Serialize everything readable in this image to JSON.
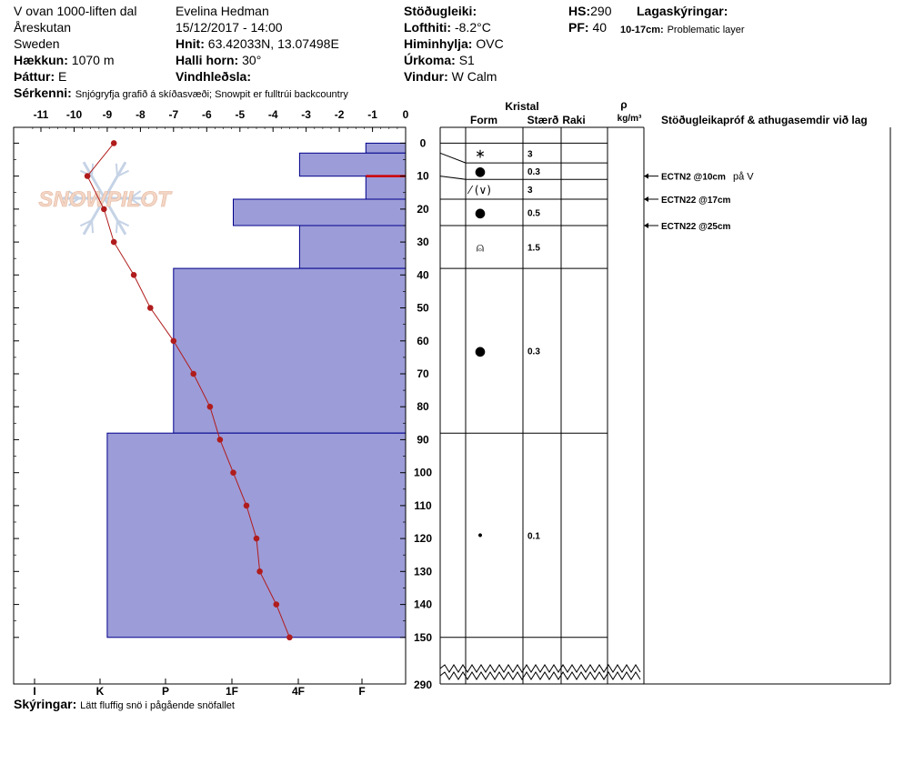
{
  "header": {
    "location_line1": "V ovan 1000-liften dal",
    "location_line2": "Åreskutan",
    "location_line3": "Sweden",
    "elevation_label": "Hækkun:",
    "elevation": "1070 m",
    "aspect_label": "Þáttur:",
    "aspect": "E",
    "observer": "Evelina Hedman",
    "datetime": "15/12/2017 - 14:00",
    "coords_label": "Hnit:",
    "coords": "63.42033N, 13.07498E",
    "slope_label": "Halli horn:",
    "slope": "30°",
    "wind_loading_label": "Vindhleðsla:",
    "stability_label": "Stöðugleiki:",
    "air_temp_label": "Lofthiti:",
    "air_temp": "-8.2°C",
    "sky_label": "Himinhylja:",
    "sky": "OVC",
    "precip_label": "Úrkoma:",
    "precip": "S1",
    "wind_label": "Vindur:",
    "wind": "W Calm",
    "hs_label": "HS:",
    "hs": "290",
    "pf_label": "PF:",
    "pf": "40",
    "layer_notes_label": "Lagaskýringar:",
    "problem_layer_range": "10-17cm:",
    "problem_layer_text": "Problematic layer",
    "specifics_label": "Sérkenni:",
    "specifics": "Snjógryfja grafið á skíðasvæði; Snowpit er fulltrúi backcountry"
  },
  "footer": {
    "notes_label": "Skýringar:",
    "notes": "Lätt fluffig snö i pågående snöfallet"
  },
  "watermark": {
    "text": "SNOWPILOT"
  },
  "columns": {
    "crystal_label": "Kristal",
    "form_label": "Form",
    "size_label": "Stærð",
    "moisture_label": "Raki",
    "density_symbol": "ρ",
    "density_unit": "kg/m³",
    "tests_label": "Stöðugleikapróf & athugasemdir við lag"
  },
  "chart_data": {
    "type": "snow-profile",
    "title": "",
    "temperature_axis": {
      "ticks": [
        "-11",
        "-10",
        "-9",
        "-8",
        "-7",
        "-6",
        "-5",
        "-4",
        "-3",
        "-2",
        "-1",
        "0"
      ],
      "range": [
        -11.3,
        0
      ]
    },
    "hardness_axis": {
      "ticks": [
        "I",
        "K",
        "P",
        "1F",
        "4F",
        "F"
      ]
    },
    "depth_axis": {
      "ticks": [
        "0",
        "10",
        "20",
        "30",
        "40",
        "50",
        "60",
        "70",
        "80",
        "90",
        "100",
        "110",
        "120",
        "130",
        "140",
        "150"
      ],
      "break_label": "290",
      "range": [
        0,
        150
      ]
    },
    "hardness_layers": [
      {
        "top": 0,
        "bottom": 3,
        "hardness_temp_equiv": -1.2
      },
      {
        "top": 3,
        "bottom": 10,
        "hardness_temp_equiv": -3.2
      },
      {
        "top": 10,
        "bottom": 17,
        "hardness_temp_equiv": -1.2
      },
      {
        "top": 17,
        "bottom": 25,
        "hardness_temp_equiv": -5.2
      },
      {
        "top": 25,
        "bottom": 38,
        "hardness_temp_equiv": -3.2
      },
      {
        "top": 38,
        "bottom": 88,
        "hardness_temp_equiv": -7.0
      },
      {
        "top": 88,
        "bottom": 150,
        "hardness_temp_equiv": -9.0
      }
    ],
    "problem_layer_depth": 10,
    "temperature_profile": [
      {
        "depth": 0,
        "temp": -8.8
      },
      {
        "depth": 10,
        "temp": -9.6
      },
      {
        "depth": 20,
        "temp": -9.1
      },
      {
        "depth": 30,
        "temp": -8.8
      },
      {
        "depth": 40,
        "temp": -8.2
      },
      {
        "depth": 50,
        "temp": -7.7
      },
      {
        "depth": 60,
        "temp": -7.0
      },
      {
        "depth": 70,
        "temp": -6.4
      },
      {
        "depth": 80,
        "temp": -5.9
      },
      {
        "depth": 90,
        "temp": -5.6
      },
      {
        "depth": 100,
        "temp": -5.2
      },
      {
        "depth": 110,
        "temp": -4.8
      },
      {
        "depth": 120,
        "temp": -4.5
      },
      {
        "depth": 130,
        "temp": -4.4
      },
      {
        "depth": 140,
        "temp": -3.9
      },
      {
        "depth": 150,
        "temp": -3.5
      }
    ],
    "crystal_layers": [
      {
        "top": 0,
        "bottom": 6,
        "form": "∗",
        "size": "3"
      },
      {
        "top": 6,
        "bottom": 11,
        "form": "●",
        "size": "0.3"
      },
      {
        "top": 11,
        "bottom": 17,
        "form": "⁄ (∨)",
        "size": "3"
      },
      {
        "top": 17,
        "bottom": 25,
        "form": "●",
        "size": "0.5"
      },
      {
        "top": 25,
        "bottom": 38,
        "form": "⍝",
        "size": "1.5"
      },
      {
        "top": 38,
        "bottom": 88,
        "form": "●",
        "size": "0.3"
      },
      {
        "top": 88,
        "bottom": 150,
        "form": "•",
        "size": "0.1"
      }
    ],
    "tests": [
      {
        "depth": 10,
        "label": "ECTN2 @10cm",
        "note": "på V"
      },
      {
        "depth": 17,
        "label": "ECTN22 @17cm",
        "note": ""
      },
      {
        "depth": 25,
        "label": "ECTN22 @25cm",
        "note": ""
      }
    ],
    "colors": {
      "hardness_fill": "#9c9cd8",
      "hardness_stroke": "#00008b",
      "temperature": "#b01c1c",
      "problem_layer": "#cc0000"
    }
  }
}
